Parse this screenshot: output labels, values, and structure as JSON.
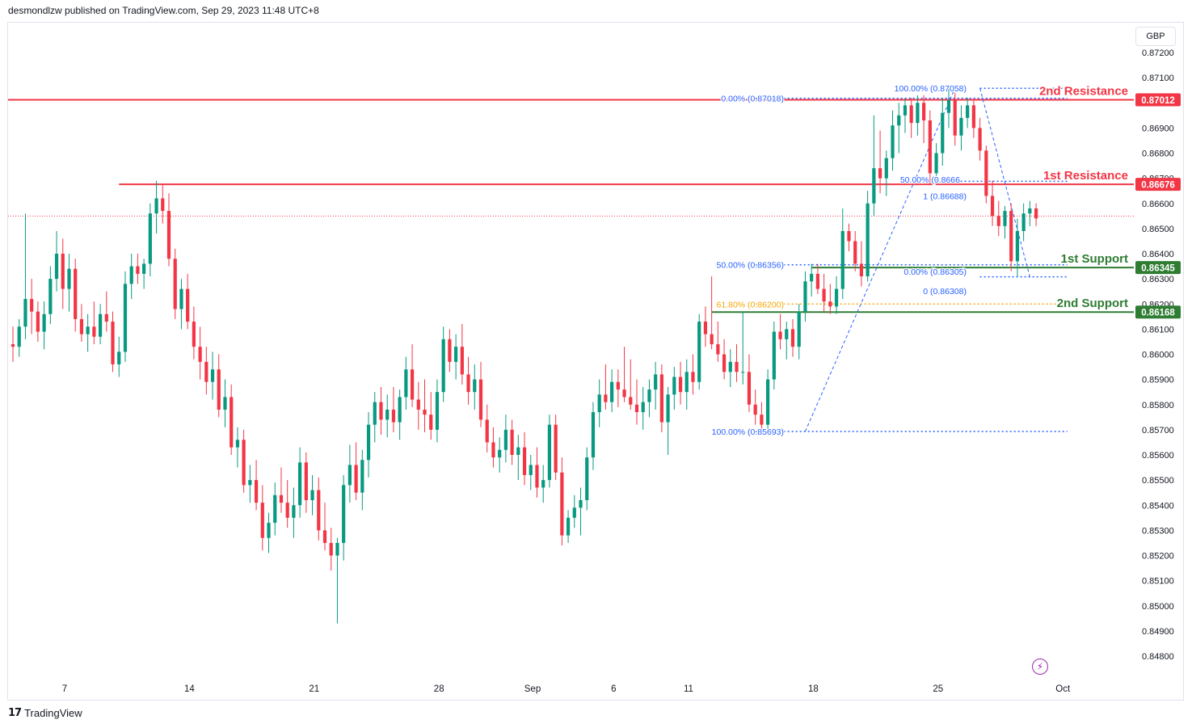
{
  "header": {
    "text": "desmondlzw published on TradingView.com, Sep 29, 2023 11:48 UTC+8"
  },
  "footer": {
    "brand": "TradingView",
    "mark": "17"
  },
  "currency": "GBP",
  "icons": {
    "bolt": "lightning-bolt-icon"
  },
  "chart_data": {
    "type": "candlestick",
    "y_ticks": [
      "0.87200",
      "0.87100",
      "0.87000",
      "0.86900",
      "0.86800",
      "0.86700",
      "0.86600",
      "0.86500",
      "0.86400",
      "0.86300",
      "0.86200",
      "0.86100",
      "0.86000",
      "0.85900",
      "0.85800",
      "0.85700",
      "0.85600",
      "0.85500",
      "0.85400",
      "0.85300",
      "0.85200",
      "0.85100",
      "0.85000",
      "0.84900",
      "0.84800"
    ],
    "x_ticks": [
      {
        "label": "7",
        "bar": 0
      },
      {
        "label": "14",
        "bar": 20
      },
      {
        "label": "21",
        "bar": 40
      },
      {
        "label": "28",
        "bar": 60
      },
      {
        "label": "Sep",
        "bar": 75
      },
      {
        "label": "6",
        "bar": 88
      },
      {
        "label": "11",
        "bar": 100
      },
      {
        "label": "18",
        "bar": 120
      },
      {
        "label": "25",
        "bar": 140
      },
      {
        "label": "Oct",
        "bar": 160
      }
    ],
    "current_price": 0.8655,
    "price_labels": [
      {
        "value": "0.87012",
        "price": 0.87012,
        "color": "#f23645"
      },
      {
        "value": "0.86676",
        "price": 0.86676,
        "color": "#f23645"
      },
      {
        "value": "0.86345",
        "price": 0.86345,
        "color": "#2e7d32"
      },
      {
        "value": "0.86168",
        "price": 0.86168,
        "color": "#2e7d32"
      }
    ],
    "levels": [
      {
        "name": "2nd Resistance",
        "price": 0.87012,
        "color": "#f23645",
        "from_bar": -8
      },
      {
        "name": "1st Resistance",
        "price": 0.86676,
        "color": "#f23645",
        "from_bar": 17
      },
      {
        "name": "1st Support",
        "price": 0.86345,
        "color": "#2e7d32",
        "from_bar": 128
      },
      {
        "name": "2nd Support",
        "price": 0.86168,
        "color": "#2e7d32",
        "from_bar": 112
      }
    ],
    "fib_labels": [
      {
        "text": "100.00% (0.87058)",
        "price": 0.87058,
        "color": "#2962ff"
      },
      {
        "text": "0.00% (0.87018)",
        "price": 0.87018,
        "color": "#2962ff"
      },
      {
        "text": "50.00% (0.8666",
        "price": 0.86695,
        "color": "#2962ff"
      },
      {
        "text": "1 (0.86688)",
        "price": 0.8663,
        "color": "#2962ff"
      },
      {
        "text": "50.00% (0.86356)",
        "price": 0.86356,
        "color": "#2962ff"
      },
      {
        "text": "0.00% (0.86305)",
        "price": 0.8633,
        "color": "#2962ff"
      },
      {
        "text": "0 (0.86308)",
        "price": 0.86252,
        "color": "#2962ff"
      },
      {
        "text": "61.80% (0.86200)",
        "price": 0.862,
        "color": "#f7a600"
      },
      {
        "text": "100.00% (0.85693)",
        "price": 0.85693,
        "color": "#2962ff"
      }
    ],
    "dotted_levels": [
      {
        "price": 0.87058,
        "color": "#2962ff",
        "from_bar": 155,
        "to_bar": 169
      },
      {
        "price": 0.87018,
        "color": "#2962ff",
        "from_bar": 119,
        "to_bar": 169
      },
      {
        "price": 0.86688,
        "color": "#2962ff",
        "from_bar": 148,
        "to_bar": 169
      },
      {
        "price": 0.86356,
        "color": "#2962ff",
        "from_bar": 119,
        "to_bar": 169
      },
      {
        "price": 0.86308,
        "color": "#2962ff",
        "from_bar": 155,
        "to_bar": 169
      },
      {
        "price": 0.862,
        "color": "#f7a600",
        "from_bar": 119,
        "to_bar": 169
      },
      {
        "price": 0.85693,
        "color": "#2962ff",
        "from_bar": 119,
        "to_bar": 169
      }
    ],
    "fib_lines": [
      {
        "from_bar": 127,
        "from_price": 0.85693,
        "to_bar": 151,
        "to_price": 0.87058
      },
      {
        "from_bar": 155,
        "from_price": 0.87058,
        "to_bar": 163,
        "to_price": 0.86308
      }
    ],
    "candles": [
      [
        0.8604,
        0.8611,
        0.8597,
        0.8603
      ],
      [
        0.8603,
        0.8614,
        0.8599,
        0.8611
      ],
      [
        0.8611,
        0.8656,
        0.8606,
        0.8622
      ],
      [
        0.8622,
        0.863,
        0.8608,
        0.8617
      ],
      [
        0.8617,
        0.8621,
        0.8605,
        0.8609
      ],
      [
        0.8609,
        0.8621,
        0.8602,
        0.8616
      ],
      [
        0.8616,
        0.8635,
        0.8612,
        0.863
      ],
      [
        0.863,
        0.8649,
        0.8625,
        0.864
      ],
      [
        0.864,
        0.8646,
        0.8618,
        0.8626
      ],
      [
        0.8626,
        0.864,
        0.8617,
        0.8634
      ],
      [
        0.8634,
        0.8638,
        0.8609,
        0.8614
      ],
      [
        0.8614,
        0.862,
        0.8605,
        0.8608
      ],
      [
        0.8608,
        0.8616,
        0.8601,
        0.8611
      ],
      [
        0.8611,
        0.8621,
        0.8604,
        0.8607
      ],
      [
        0.8607,
        0.862,
        0.8604,
        0.8616
      ],
      [
        0.8616,
        0.8625,
        0.8609,
        0.8613
      ],
      [
        0.8613,
        0.8617,
        0.8593,
        0.8596
      ],
      [
        0.8596,
        0.8607,
        0.8591,
        0.8601
      ],
      [
        0.8601,
        0.8633,
        0.8597,
        0.8628
      ],
      [
        0.8628,
        0.864,
        0.8622,
        0.8635
      ],
      [
        0.8635,
        0.864,
        0.8628,
        0.8632
      ],
      [
        0.8632,
        0.8638,
        0.8626,
        0.8636
      ],
      [
        0.8636,
        0.866,
        0.8631,
        0.8656
      ],
      [
        0.8656,
        0.8669,
        0.8648,
        0.8662
      ],
      [
        0.8662,
        0.8668,
        0.8652,
        0.8657
      ],
      [
        0.8657,
        0.8664,
        0.8635,
        0.8638
      ],
      [
        0.8638,
        0.8642,
        0.8614,
        0.8618
      ],
      [
        0.8618,
        0.863,
        0.861,
        0.8626
      ],
      [
        0.8626,
        0.8632,
        0.861,
        0.8613
      ],
      [
        0.8613,
        0.8619,
        0.8598,
        0.8603
      ],
      [
        0.8603,
        0.8611,
        0.859,
        0.8597
      ],
      [
        0.8597,
        0.8603,
        0.8584,
        0.8589
      ],
      [
        0.8589,
        0.8601,
        0.8582,
        0.8594
      ],
      [
        0.8594,
        0.86,
        0.8575,
        0.8578
      ],
      [
        0.8578,
        0.859,
        0.8571,
        0.8583
      ],
      [
        0.8583,
        0.8588,
        0.856,
        0.8563
      ],
      [
        0.8563,
        0.8571,
        0.8555,
        0.8566
      ],
      [
        0.8566,
        0.857,
        0.8545,
        0.8548
      ],
      [
        0.8548,
        0.8556,
        0.8541,
        0.855
      ],
      [
        0.855,
        0.8558,
        0.8538,
        0.8541
      ],
      [
        0.8541,
        0.8548,
        0.8522,
        0.8527
      ],
      [
        0.8527,
        0.8537,
        0.8521,
        0.8533
      ],
      [
        0.8533,
        0.8549,
        0.8528,
        0.8544
      ],
      [
        0.8544,
        0.8555,
        0.8537,
        0.8541
      ],
      [
        0.8541,
        0.855,
        0.8531,
        0.8535
      ],
      [
        0.8535,
        0.8547,
        0.8527,
        0.854
      ],
      [
        0.854,
        0.8563,
        0.8535,
        0.8557
      ],
      [
        0.8557,
        0.8561,
        0.8537,
        0.8542
      ],
      [
        0.8542,
        0.8552,
        0.8536,
        0.8546
      ],
      [
        0.8546,
        0.8551,
        0.8526,
        0.853
      ],
      [
        0.853,
        0.8541,
        0.8522,
        0.8525
      ],
      [
        0.8525,
        0.8531,
        0.8514,
        0.852
      ],
      [
        0.852,
        0.8527,
        0.8493,
        0.8525
      ],
      [
        0.8525,
        0.8552,
        0.8518,
        0.8548
      ],
      [
        0.8548,
        0.8564,
        0.8541,
        0.8556
      ],
      [
        0.8556,
        0.8565,
        0.8542,
        0.8545
      ],
      [
        0.8545,
        0.8562,
        0.8538,
        0.8558
      ],
      [
        0.8558,
        0.8577,
        0.8551,
        0.8572
      ],
      [
        0.8572,
        0.8585,
        0.8565,
        0.8581
      ],
      [
        0.8581,
        0.8587,
        0.8568,
        0.8574
      ],
      [
        0.8574,
        0.8584,
        0.8567,
        0.8578
      ],
      [
        0.8578,
        0.8587,
        0.8569,
        0.8573
      ],
      [
        0.8573,
        0.8586,
        0.8566,
        0.8583
      ],
      [
        0.8583,
        0.8599,
        0.8578,
        0.8594
      ],
      [
        0.8594,
        0.8604,
        0.8579,
        0.8582
      ],
      [
        0.8582,
        0.8589,
        0.857,
        0.8578
      ],
      [
        0.8578,
        0.859,
        0.8569,
        0.8576
      ],
      [
        0.8576,
        0.8585,
        0.8566,
        0.857
      ],
      [
        0.857,
        0.859,
        0.8565,
        0.8585
      ],
      [
        0.8585,
        0.8611,
        0.8581,
        0.8606
      ],
      [
        0.8606,
        0.861,
        0.8593,
        0.8597
      ],
      [
        0.8597,
        0.8608,
        0.859,
        0.8603
      ],
      [
        0.8603,
        0.8612,
        0.8588,
        0.8592
      ],
      [
        0.8592,
        0.8599,
        0.858,
        0.8585
      ],
      [
        0.8585,
        0.8596,
        0.8578,
        0.859
      ],
      [
        0.859,
        0.8597,
        0.8571,
        0.8574
      ],
      [
        0.8574,
        0.858,
        0.8561,
        0.8565
      ],
      [
        0.8565,
        0.8571,
        0.8555,
        0.8559
      ],
      [
        0.8559,
        0.8567,
        0.8553,
        0.8562
      ],
      [
        0.8562,
        0.8576,
        0.8557,
        0.857
      ],
      [
        0.857,
        0.8574,
        0.8556,
        0.856
      ],
      [
        0.856,
        0.8568,
        0.855,
        0.8563
      ],
      [
        0.8563,
        0.8569,
        0.8548,
        0.8552
      ],
      [
        0.8552,
        0.856,
        0.8546,
        0.8556
      ],
      [
        0.8556,
        0.8563,
        0.8543,
        0.8547
      ],
      [
        0.8547,
        0.8556,
        0.8541,
        0.855
      ],
      [
        0.855,
        0.8576,
        0.8547,
        0.8572
      ],
      [
        0.8572,
        0.8576,
        0.855,
        0.8553
      ],
      [
        0.8553,
        0.8559,
        0.8524,
        0.8528
      ],
      [
        0.8528,
        0.8538,
        0.8525,
        0.8535
      ],
      [
        0.8535,
        0.8544,
        0.8531,
        0.8539
      ],
      [
        0.8539,
        0.8547,
        0.8528,
        0.8542
      ],
      [
        0.8542,
        0.8563,
        0.8538,
        0.8559
      ],
      [
        0.8559,
        0.8581,
        0.8554,
        0.8577
      ],
      [
        0.8577,
        0.859,
        0.8571,
        0.8584
      ],
      [
        0.8584,
        0.8596,
        0.8578,
        0.8581
      ],
      [
        0.8581,
        0.8594,
        0.8577,
        0.8589
      ],
      [
        0.8589,
        0.8594,
        0.8579,
        0.8586
      ],
      [
        0.8586,
        0.8603,
        0.8581,
        0.8583
      ],
      [
        0.8583,
        0.8598,
        0.8578,
        0.858
      ],
      [
        0.858,
        0.859,
        0.8572,
        0.8577
      ],
      [
        0.8577,
        0.8587,
        0.857,
        0.8581
      ],
      [
        0.8581,
        0.859,
        0.8575,
        0.8586
      ],
      [
        0.8586,
        0.8597,
        0.8578,
        0.8592
      ],
      [
        0.8592,
        0.8596,
        0.8569,
        0.8573
      ],
      [
        0.8573,
        0.8587,
        0.856,
        0.8584
      ],
      [
        0.8584,
        0.8595,
        0.8578,
        0.8591
      ],
      [
        0.8591,
        0.8597,
        0.858,
        0.8585
      ],
      [
        0.8585,
        0.8598,
        0.8578,
        0.8593
      ],
      [
        0.8593,
        0.86,
        0.8584,
        0.8589
      ],
      [
        0.8589,
        0.8616,
        0.8586,
        0.8613
      ],
      [
        0.8613,
        0.8619,
        0.8603,
        0.8608
      ],
      [
        0.8608,
        0.8631,
        0.8602,
        0.8604
      ],
      [
        0.8604,
        0.8613,
        0.8597,
        0.86
      ],
      [
        0.86,
        0.8606,
        0.859,
        0.8593
      ],
      [
        0.8593,
        0.8602,
        0.8587,
        0.8597
      ],
      [
        0.8597,
        0.8604,
        0.8589,
        0.8593
      ],
      [
        0.8593,
        0.8617,
        0.8588,
        0.8593
      ],
      [
        0.8593,
        0.86,
        0.8577,
        0.858
      ],
      [
        0.858,
        0.8586,
        0.8572,
        0.8576
      ],
      [
        0.8576,
        0.8581,
        0.8568,
        0.8572
      ],
      [
        0.8572,
        0.8594,
        0.8569,
        0.859
      ],
      [
        0.859,
        0.8613,
        0.8586,
        0.8609
      ],
      [
        0.8609,
        0.8616,
        0.8602,
        0.8606
      ],
      [
        0.8606,
        0.8613,
        0.8598,
        0.861
      ],
      [
        0.861,
        0.8614,
        0.8599,
        0.8603
      ],
      [
        0.8603,
        0.862,
        0.8598,
        0.8617
      ],
      [
        0.8617,
        0.8633,
        0.8613,
        0.8629
      ],
      [
        0.8629,
        0.8636,
        0.8623,
        0.8632
      ],
      [
        0.8632,
        0.8636,
        0.8624,
        0.8626
      ],
      [
        0.8626,
        0.8632,
        0.8617,
        0.8621
      ],
      [
        0.8621,
        0.8628,
        0.8616,
        0.8619
      ],
      [
        0.8619,
        0.8631,
        0.8616,
        0.8626
      ],
      [
        0.8626,
        0.8658,
        0.8622,
        0.8649
      ],
      [
        0.8649,
        0.8652,
        0.8641,
        0.8645
      ],
      [
        0.8645,
        0.8649,
        0.8633,
        0.8636
      ],
      [
        0.8636,
        0.8645,
        0.8627,
        0.8631
      ],
      [
        0.8631,
        0.8665,
        0.8629,
        0.866
      ],
      [
        0.866,
        0.8695,
        0.8655,
        0.8674
      ],
      [
        0.8674,
        0.8689,
        0.8664,
        0.867
      ],
      [
        0.867,
        0.8681,
        0.8663,
        0.8678
      ],
      [
        0.8678,
        0.8697,
        0.8673,
        0.8691
      ],
      [
        0.8691,
        0.87,
        0.868,
        0.8695
      ],
      [
        0.8695,
        0.8702,
        0.8688,
        0.8699
      ],
      [
        0.8699,
        0.8702,
        0.8686,
        0.8692
      ],
      [
        0.8692,
        0.8703,
        0.8687,
        0.87
      ],
      [
        0.87,
        0.8703,
        0.8684,
        0.8693
      ],
      [
        0.8693,
        0.8697,
        0.8668,
        0.8672
      ],
      [
        0.8672,
        0.8684,
        0.8668,
        0.868
      ],
      [
        0.868,
        0.8702,
        0.8675,
        0.8696
      ],
      [
        0.8696,
        0.8706,
        0.869,
        0.8701
      ],
      [
        0.8701,
        0.8704,
        0.8683,
        0.8687
      ],
      [
        0.8687,
        0.8699,
        0.8681,
        0.8694
      ],
      [
        0.8694,
        0.8702,
        0.869,
        0.8699
      ],
      [
        0.8699,
        0.8701,
        0.8686,
        0.869
      ],
      [
        0.869,
        0.8694,
        0.8677,
        0.8681
      ],
      [
        0.8681,
        0.8683,
        0.866,
        0.8663
      ],
      [
        0.8663,
        0.8669,
        0.8651,
        0.8655
      ],
      [
        0.8655,
        0.8661,
        0.8647,
        0.8651
      ],
      [
        0.8651,
        0.8659,
        0.8646,
        0.8657
      ],
      [
        0.8657,
        0.866,
        0.8633,
        0.8637
      ],
      [
        0.8637,
        0.8654,
        0.8631,
        0.8649
      ],
      [
        0.8649,
        0.866,
        0.8645,
        0.8656
      ],
      [
        0.8656,
        0.8661,
        0.8651,
        0.8658
      ],
      [
        0.8658,
        0.866,
        0.8651,
        0.8654
      ]
    ]
  }
}
